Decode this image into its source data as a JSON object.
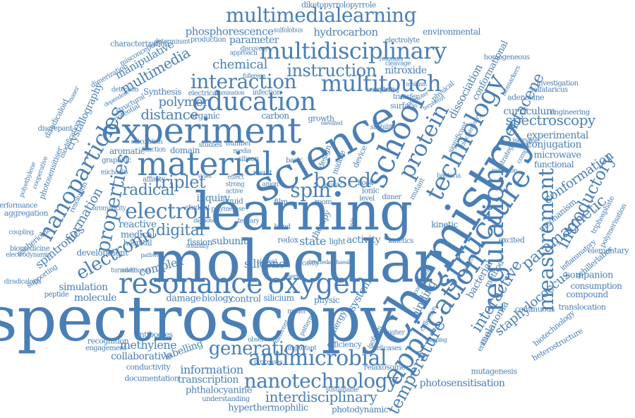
{
  "colors": {
    "primary": "#4a7fb5",
    "dark": "#2f5f94",
    "background": "#ffffff"
  },
  "words": [
    "spectroscopy",
    "molecular",
    "learning",
    "chemistry",
    "science",
    "experiment",
    "material",
    "education",
    "structure",
    "regulation",
    "school",
    "resonance",
    "oxygen",
    "application",
    "technology",
    "multidisciplinary",
    "multimedialearning",
    "multitouch",
    "nanoparticles",
    "protein",
    "measurement",
    "antimicrobial",
    "nanotechnology",
    "generation",
    "interaction",
    "properties",
    "electronic",
    "electron",
    "spin",
    "based",
    "instruction",
    "spectroscopy",
    "introductory",
    "paramagnetic",
    "conformation",
    "temperature",
    "interactive",
    "staphylococcus",
    "pentacene",
    "triplet",
    "radical",
    "digital",
    "distance",
    "polymer",
    "interdisciplinary",
    "information",
    "transcription",
    "phthalocyanine",
    "hyperthermophilic",
    "collaborative",
    "methylene",
    "labelling",
    "chemical",
    "multimedia",
    "phosphorescence",
    "hydrocarbon",
    "nitroxide",
    "parameter",
    "manipulative",
    "crystallography",
    "formation",
    "spintronics",
    "simulation",
    "molecule",
    "complex",
    "silicone",
    "subunit",
    "state",
    "activity",
    "system",
    "binding",
    "dissociation",
    "conformational",
    "curriculum",
    "experimental",
    "conjugation",
    "microwave",
    "functional",
    "mechanism",
    "companion",
    "consumption",
    "compound",
    "translocation",
    "melanoma",
    "bacterial",
    "method",
    "photosensitisation",
    "mutagenesis",
    "photodynamic",
    "sustainable",
    "understanding",
    "documentation",
    "conductivity",
    "antibodies",
    "recognition",
    "engagement",
    "aggregation",
    "performance",
    "diradicaloid",
    "discrepant",
    "environmental",
    "homogeneous",
    "adenosine",
    "engineering",
    "investigation",
    "solfataricus",
    "biomarkers",
    "inflammatory",
    "schillerlabor",
    "elementary",
    "polymerisation",
    "triphosphate",
    "biotechnology",
    "heterostructure",
    "continuous",
    "excited",
    "kinetic",
    "reactive",
    "medical",
    "hospital",
    "fission",
    "damage",
    "biology",
    "control",
    "silicium",
    "physic",
    "energy",
    "efficiency",
    "helicases",
    "relaxosome",
    "processes",
    "important",
    "observed",
    "different",
    "aromatic",
    "graphitic",
    "affinity",
    "resolution",
    "modification",
    "photosensitiser",
    "cooperative",
    "polyethylene",
    "escherichia",
    "biomedicine",
    "electrodynamic",
    "diketopyrrolopyrrole",
    "sulfolobus",
    "electrolyte",
    "discovery",
    "characterization",
    "determinant",
    "production",
    "approach",
    "misconception",
    "dimerization",
    "organic",
    "carbon",
    "domain",
    "studies",
    "number",
    "media",
    "function",
    "structural",
    "potential",
    "Synthesis",
    "electrical",
    "infection",
    "inquiry",
    "student",
    "surface",
    "physical",
    "stability",
    "device",
    "middle",
    "design",
    "cavity",
    "light",
    "redox",
    "ionic",
    "room",
    "film",
    "liquid",
    "active",
    "strong",
    "effect",
    "silicon",
    "basic",
    "result",
    "anion",
    "level",
    "book",
    "dimer",
    "kinetics",
    "isoform",
    "isozyme",
    "computer",
    "strategy",
    "initiation",
    "emission",
    "biochemistry",
    "significant",
    "transfer",
    "promoter",
    "resonator",
    "sensitivity",
    "cleavage",
    "exploiting",
    "melanin",
    "terphenyl",
    "michaelis",
    "fullerene",
    "illumination",
    "detection",
    "dependent",
    "calculation",
    "turnover",
    "additional",
    "pathway",
    "peptide",
    "supporting",
    "development",
    "coupling",
    "polymerase",
    "serpin",
    "model",
    "directed",
    "higher",
    "trapping",
    "collective",
    "condition",
    "patient",
    "bacteria",
    "mutant",
    "therapy",
    "self",
    "pattern",
    "archaeal",
    "elevated",
    "growth",
    "maser",
    "diradicaloids",
    "aromaticity",
    "solubility",
    "plasmid",
    "violet",
    "diamond",
    "tertiary",
    "hand",
    "atomic",
    "nitrogen"
  ]
}
